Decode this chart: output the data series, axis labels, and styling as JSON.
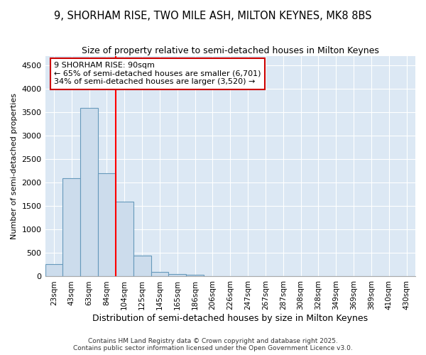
{
  "title": "9, SHORHAM RISE, TWO MILE ASH, MILTON KEYNES, MK8 8BS",
  "subtitle": "Size of property relative to semi-detached houses in Milton Keynes",
  "xlabel": "Distribution of semi-detached houses by size in Milton Keynes",
  "ylabel": "Number of semi-detached properties",
  "categories": [
    "23sqm",
    "43sqm",
    "63sqm",
    "84sqm",
    "104sqm",
    "125sqm",
    "145sqm",
    "165sqm",
    "186sqm",
    "206sqm",
    "226sqm",
    "247sqm",
    "267sqm",
    "287sqm",
    "308sqm",
    "328sqm",
    "349sqm",
    "369sqm",
    "389sqm",
    "410sqm",
    "430sqm"
  ],
  "bar_heights": [
    270,
    2100,
    3600,
    2200,
    1600,
    450,
    100,
    50,
    40,
    0,
    0,
    0,
    0,
    0,
    0,
    0,
    0,
    0,
    0,
    0,
    0
  ],
  "bar_color": "#ccdcec",
  "bar_edge_color": "#6699bb",
  "red_line_x": 3.5,
  "annotation_line1": "9 SHORHAM RISE: 90sqm",
  "annotation_line2": "← 65% of semi-detached houses are smaller (6,701)",
  "annotation_line3": "34% of semi-detached houses are larger (3,520) →",
  "annotation_box_facecolor": "#ffffff",
  "annotation_box_edgecolor": "#cc0000",
  "ylim": [
    0,
    4700
  ],
  "yticks": [
    0,
    500,
    1000,
    1500,
    2000,
    2500,
    3000,
    3500,
    4000,
    4500
  ],
  "plot_bg_color": "#dce8f4",
  "figure_bg_color": "#ffffff",
  "grid_color": "#ffffff",
  "footer_line1": "Contains HM Land Registry data © Crown copyright and database right 2025.",
  "footer_line2": "Contains public sector information licensed under the Open Government Licence v3.0.",
  "title_fontsize": 10.5,
  "subtitle_fontsize": 9,
  "ylabel_fontsize": 8,
  "xlabel_fontsize": 9,
  "tick_fontsize": 8,
  "xtick_fontsize": 7.5,
  "footer_fontsize": 6.5,
  "annotation_fontsize": 8
}
